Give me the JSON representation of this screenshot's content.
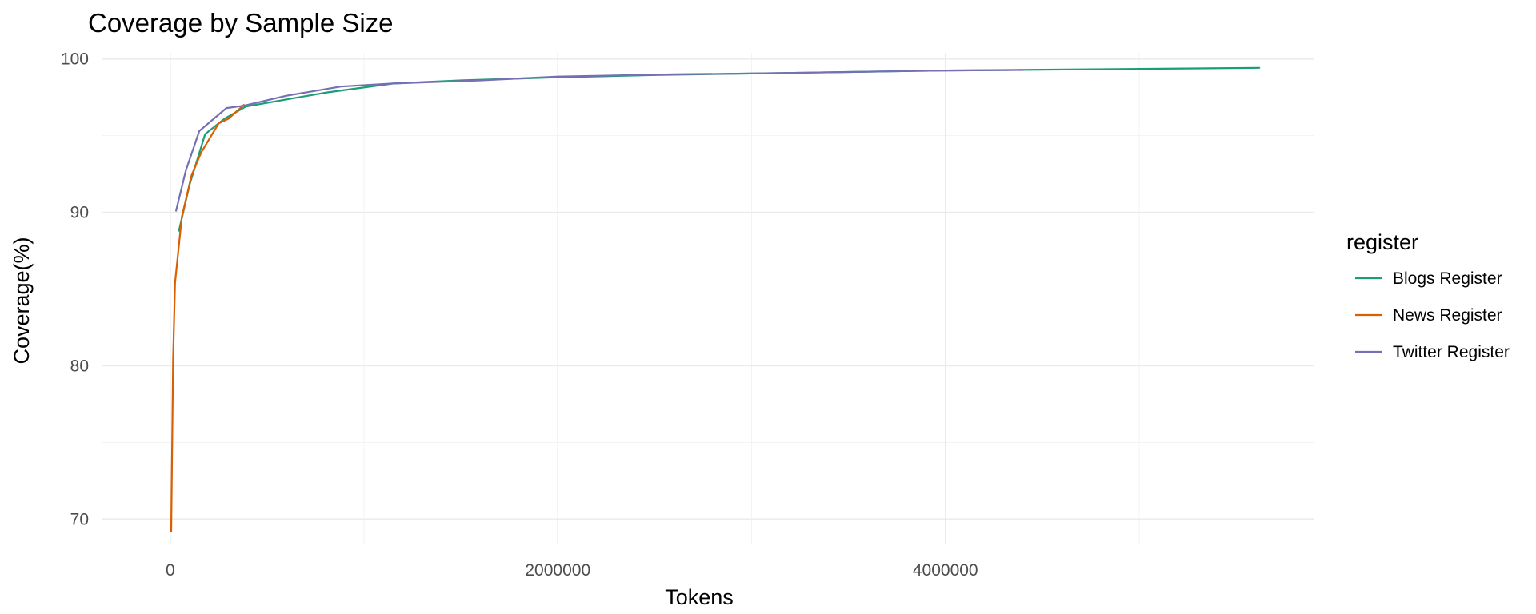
{
  "chart_data": {
    "type": "line",
    "title": "Coverage by Sample Size",
    "xlabel": "Tokens",
    "ylabel": "Coverage(%)",
    "xlim": [
      -350000,
      5900000
    ],
    "ylim": [
      68.4,
      100.4
    ],
    "x_ticks": [
      0,
      2000000,
      4000000
    ],
    "x_tick_labels": [
      "0",
      "2000000",
      "4000000"
    ],
    "x_minor_ticks": [
      1000000,
      3000000,
      5000000
    ],
    "y_ticks": [
      70,
      80,
      90,
      100
    ],
    "y_tick_labels": [
      "70",
      "80",
      "90",
      "100"
    ],
    "y_minor_ticks": [
      75,
      85,
      95
    ],
    "grid": true,
    "legend": {
      "title": "register",
      "position": "right"
    },
    "series": [
      {
        "name": "Blogs Register",
        "color": "#1b9e77",
        "points": [
          [
            45000,
            88.8
          ],
          [
            100000,
            91.8
          ],
          [
            180000,
            95.1
          ],
          [
            280000,
            96.1
          ],
          [
            390000,
            96.9
          ],
          [
            800000,
            97.8
          ],
          [
            1150000,
            98.4
          ],
          [
            1500000,
            98.6
          ],
          [
            2000000,
            98.8
          ],
          [
            2500000,
            98.95
          ],
          [
            3000000,
            99.05
          ],
          [
            3500000,
            99.15
          ],
          [
            4000000,
            99.25
          ],
          [
            4500000,
            99.3
          ],
          [
            5000000,
            99.35
          ],
          [
            5620000,
            99.42
          ]
        ]
      },
      {
        "name": "News Register",
        "color": "#d95f02",
        "points": [
          [
            5000,
            69.2
          ],
          [
            15000,
            80.5
          ],
          [
            25000,
            85.4
          ],
          [
            60000,
            89.7
          ],
          [
            110000,
            92.4
          ],
          [
            160000,
            93.9
          ],
          [
            250000,
            95.8
          ],
          [
            300000,
            96.1
          ],
          [
            380000,
            97.0
          ]
        ]
      },
      {
        "name": "Twitter Register",
        "color": "#7570b3",
        "points": [
          [
            30000,
            90.1
          ],
          [
            80000,
            92.7
          ],
          [
            150000,
            95.3
          ],
          [
            290000,
            96.8
          ],
          [
            380000,
            96.95
          ],
          [
            600000,
            97.6
          ],
          [
            880000,
            98.2
          ],
          [
            1150000,
            98.4
          ],
          [
            1600000,
            98.6
          ],
          [
            2000000,
            98.85
          ],
          [
            2600000,
            99.0
          ],
          [
            3000000,
            99.05
          ],
          [
            3500000,
            99.15
          ],
          [
            4000000,
            99.25
          ],
          [
            4400000,
            99.28
          ]
        ]
      }
    ]
  }
}
